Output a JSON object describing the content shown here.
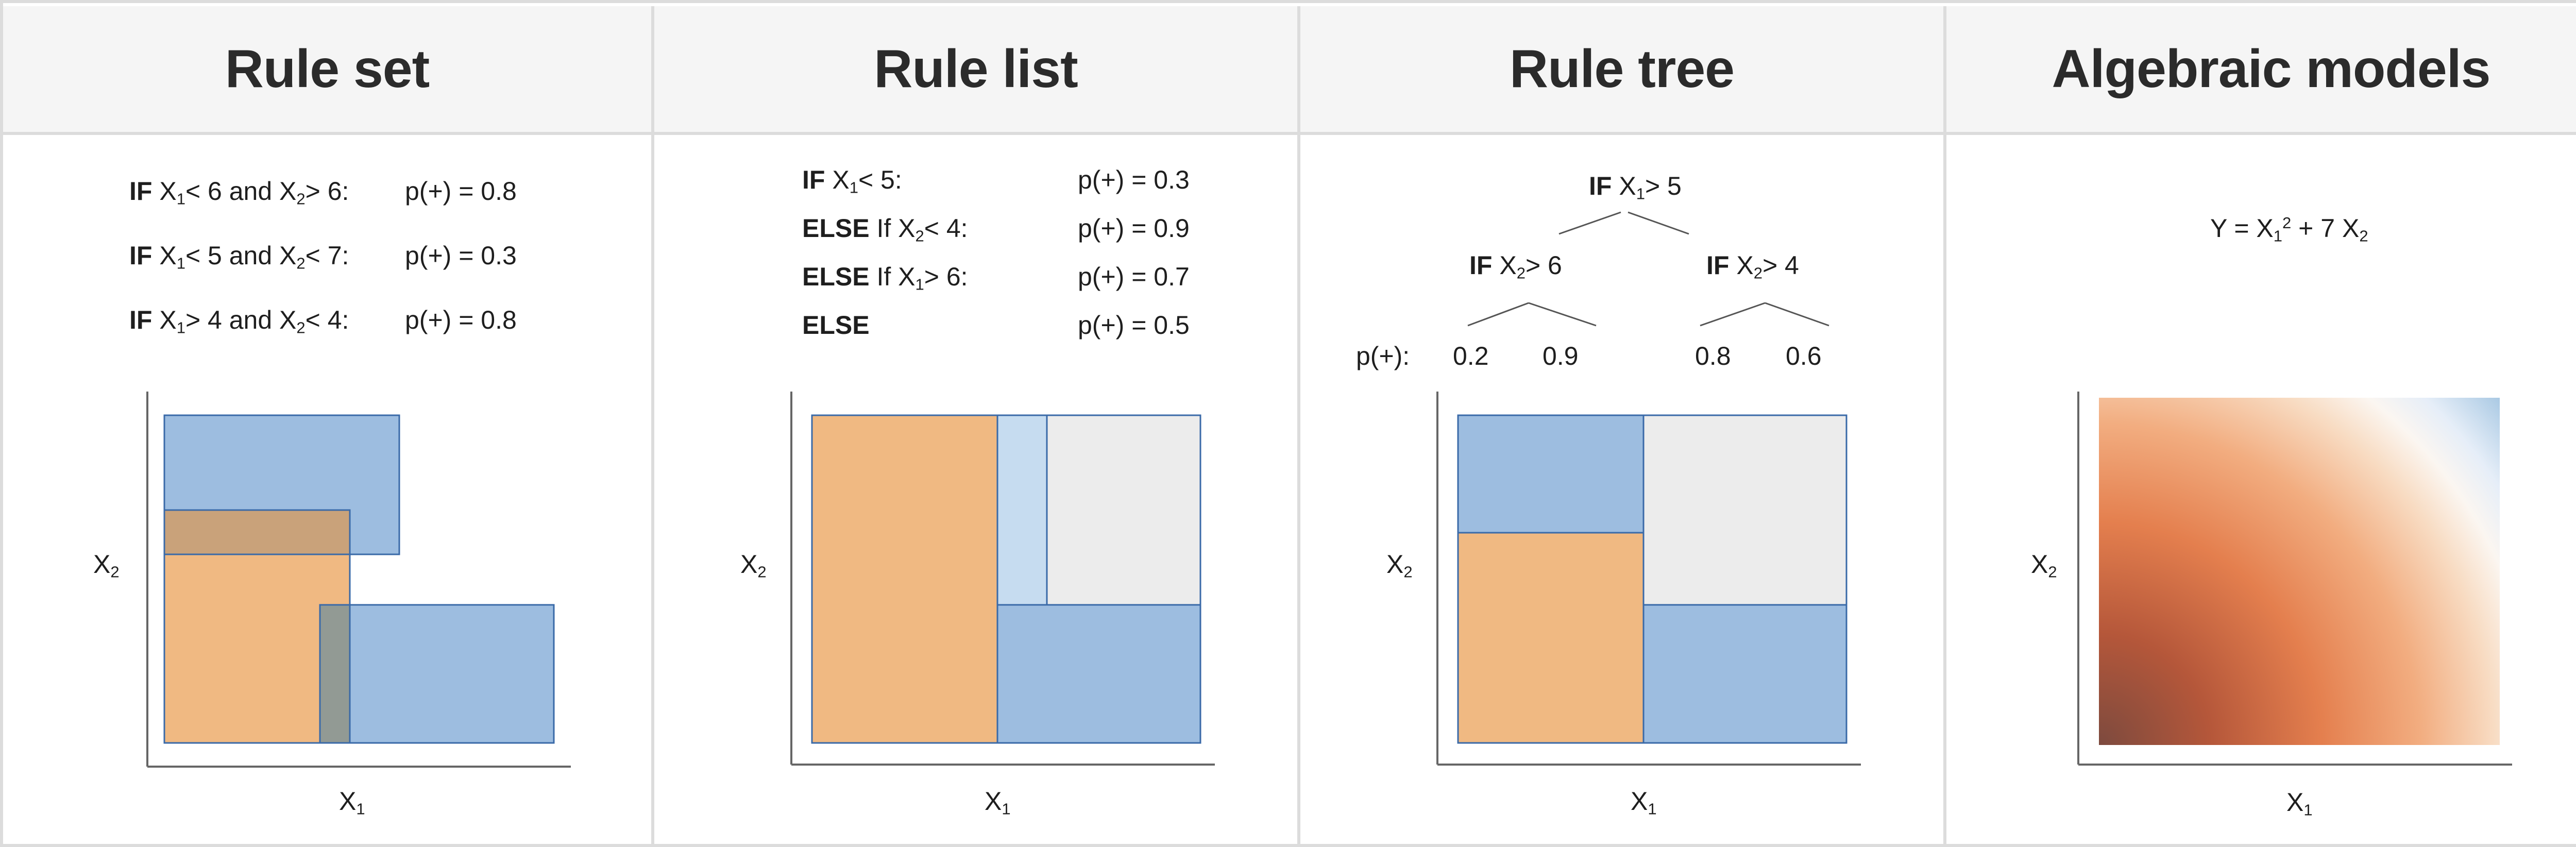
{
  "panels": {
    "rule_set": {
      "title": "Rule set",
      "rules": [
        {
          "keyword": "IF",
          "cond": [
            {
              "t": " X"
            },
            {
              "sub": "1"
            },
            {
              "t": "< 6 and X"
            },
            {
              "sub": "2"
            },
            {
              "t": "> 6:"
            }
          ],
          "prob": "p(+) = 0.8"
        },
        {
          "keyword": "IF",
          "cond": [
            {
              "t": " X"
            },
            {
              "sub": "1"
            },
            {
              "t": "< 5 and X"
            },
            {
              "sub": "2"
            },
            {
              "t": "< 7:"
            }
          ],
          "prob": "p(+) = 0.3"
        },
        {
          "keyword": "IF",
          "cond": [
            {
              "t": " X"
            },
            {
              "sub": "1"
            },
            {
              "t": "> 4 and X"
            },
            {
              "sub": "2"
            },
            {
              "t": "< 4:"
            }
          ],
          "prob": "p(+) = 0.8"
        }
      ],
      "axis_x": "X",
      "axis_x_sub": "1",
      "axis_y": "X",
      "axis_y_sub": "2"
    },
    "rule_list": {
      "title": "Rule list",
      "rules": [
        {
          "keyword": "IF",
          "cond": [
            {
              "t": " X"
            },
            {
              "sub": "1"
            },
            {
              "t": "< 5:"
            }
          ],
          "prob": "p(+) = 0.3"
        },
        {
          "keyword": "ELSE",
          "cond": [
            {
              "t": " If X"
            },
            {
              "sub": "2"
            },
            {
              "t": "< 4:"
            }
          ],
          "prob": "p(+) = 0.9"
        },
        {
          "keyword": "ELSE",
          "cond": [
            {
              "t": " If X"
            },
            {
              "sub": "1"
            },
            {
              "t": "> 6:"
            }
          ],
          "prob": "p(+) = 0.7"
        },
        {
          "keyword": "ELSE",
          "cond": [],
          "prob": "p(+) = 0.5"
        }
      ],
      "axis_x": "X",
      "axis_x_sub": "1",
      "axis_y": "X",
      "axis_y_sub": "2"
    },
    "rule_tree": {
      "title": "Rule tree",
      "root": {
        "keyword": "IF",
        "cond": [
          {
            "t": " X"
          },
          {
            "sub": "1"
          },
          {
            "t": "> 5"
          }
        ]
      },
      "left": {
        "keyword": "IF",
        "cond": [
          {
            "t": " X"
          },
          {
            "sub": "2"
          },
          {
            "t": "> 6"
          }
        ]
      },
      "right": {
        "keyword": "IF",
        "cond": [
          {
            "t": " X"
          },
          {
            "sub": "2"
          },
          {
            "t": "> 4"
          }
        ]
      },
      "leaf_label": "p(+):",
      "leaves": [
        "0.2",
        "0.9",
        "0.8",
        "0.6"
      ],
      "axis_x": "X",
      "axis_x_sub": "1",
      "axis_y": "X",
      "axis_y_sub": "2"
    },
    "algebraic": {
      "title": "Algebraic models",
      "formula": [
        {
          "t": "Y = X"
        },
        {
          "sub": "1"
        },
        {
          "sup": "2"
        },
        {
          "t": " + 7 X"
        },
        {
          "sub": "2"
        }
      ],
      "axis_x": "X",
      "axis_x_sub": "1",
      "axis_y": "X",
      "axis_y_sub": "2"
    }
  },
  "colors": {
    "orange": "#f0b982",
    "blue": "#9dbde0",
    "light_blue": "#c6dcf0",
    "gray": "#ececec",
    "overlap_brown": "#c9a27a",
    "overlap_gray": "#929a94",
    "edge": "#3a6aa8",
    "axis": "#666666"
  }
}
